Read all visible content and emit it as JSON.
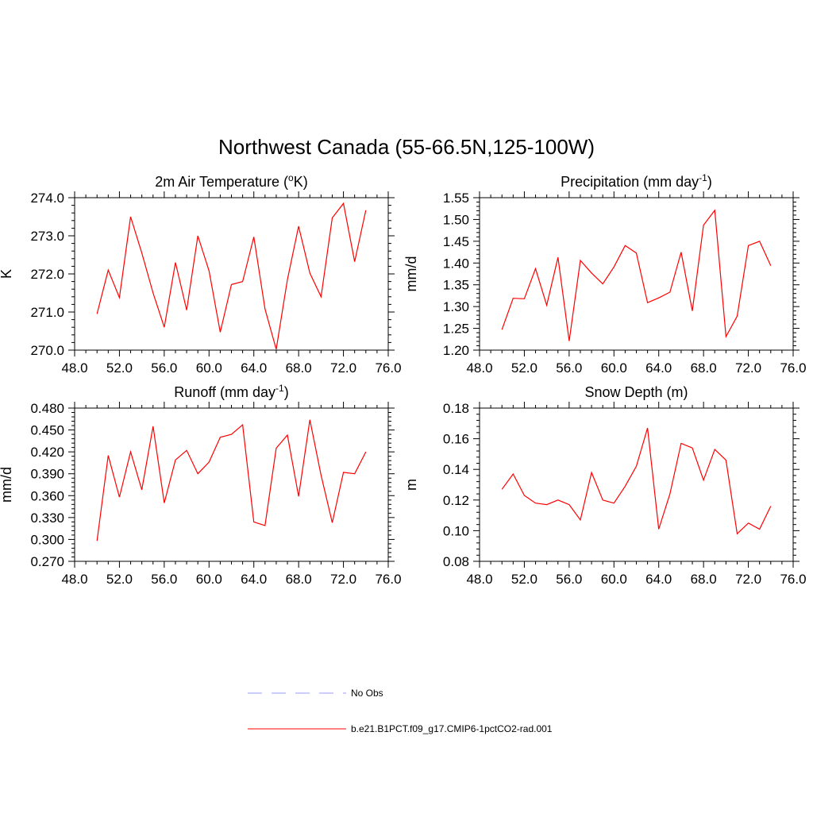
{
  "title": "Northwest Canada (55-66.5N,125-100W)",
  "colors": {
    "model": "#ff0000",
    "obs": "#9999ff",
    "axis": "#000000"
  },
  "legend": {
    "placement": "bottom-center",
    "entries": [
      {
        "label": "No Obs",
        "style": "dashed",
        "color": "#9999ff"
      },
      {
        "label": "b.e21.B1PCT.f09_g17.CMIP6-1pctCO2-rad.001",
        "style": "solid",
        "color": "#ff0000"
      }
    ]
  },
  "chart_data": [
    {
      "type": "line",
      "title_main": "2m Air Temperature (",
      "title_sup": "o",
      "title_tail": "K)",
      "xlabel": "",
      "ylabel": "K",
      "xlim": [
        48,
        76
      ],
      "ylim": [
        270,
        274
      ],
      "xticks": [
        "48.0",
        "52.0",
        "56.0",
        "60.0",
        "64.0",
        "68.0",
        "72.0",
        "76.0"
      ],
      "yticks": [
        "270.0",
        "271.0",
        "272.0",
        "273.0",
        "274.0"
      ],
      "grid": false,
      "series": [
        {
          "x": [
            50,
            51,
            52,
            53,
            54,
            55,
            56,
            57,
            58,
            59,
            60,
            61,
            62,
            63,
            64,
            65,
            66,
            67,
            68,
            69,
            70,
            71,
            72,
            73,
            74
          ],
          "values": [
            270.95,
            272.1,
            271.38,
            273.5,
            272.55,
            271.5,
            270.6,
            272.3,
            271.05,
            273.0,
            272.08,
            270.47,
            271.72,
            271.8,
            272.97,
            271.08,
            270.02,
            271.85,
            273.25,
            272.02,
            271.4,
            273.47,
            273.85,
            272.32,
            273.67
          ]
        }
      ]
    },
    {
      "type": "line",
      "title_main": "Precipitation (mm day",
      "title_sup": "-1",
      "title_tail": ")",
      "xlabel": "",
      "ylabel": "mm/d",
      "xlim": [
        48,
        76
      ],
      "ylim": [
        1.2,
        1.55
      ],
      "xticks": [
        "48.0",
        "52.0",
        "56.0",
        "60.0",
        "64.0",
        "68.0",
        "72.0",
        "76.0"
      ],
      "yticks": [
        "1.20",
        "1.25",
        "1.30",
        "1.35",
        "1.40",
        "1.45",
        "1.50",
        "1.55"
      ],
      "grid": false,
      "series": [
        {
          "x": [
            50,
            51,
            52,
            53,
            54,
            55,
            56,
            57,
            58,
            59,
            60,
            61,
            62,
            63,
            64,
            65,
            66,
            67,
            68,
            69,
            70,
            71,
            72,
            73,
            74
          ],
          "values": [
            1.247,
            1.319,
            1.318,
            1.387,
            1.303,
            1.413,
            1.221,
            1.406,
            1.377,
            1.352,
            1.391,
            1.44,
            1.423,
            1.309,
            1.32,
            1.333,
            1.425,
            1.29,
            1.487,
            1.521,
            1.231,
            1.278,
            1.44,
            1.45,
            1.394
          ]
        }
      ]
    },
    {
      "type": "line",
      "title_main": "Runoff (mm day",
      "title_sup": "-1",
      "title_tail": ")",
      "xlabel": "",
      "ylabel": "mm/d",
      "xlim": [
        48,
        76
      ],
      "ylim": [
        0.27,
        0.48
      ],
      "xticks": [
        "48.0",
        "52.0",
        "56.0",
        "60.0",
        "64.0",
        "68.0",
        "72.0",
        "76.0"
      ],
      "yticks": [
        "0.270",
        "0.300",
        "0.330",
        "0.360",
        "0.390",
        "0.420",
        "0.450",
        "0.480"
      ],
      "grid": false,
      "series": [
        {
          "x": [
            50,
            51,
            52,
            53,
            54,
            55,
            56,
            57,
            58,
            59,
            60,
            61,
            62,
            63,
            64,
            65,
            66,
            67,
            68,
            69,
            70,
            71,
            72,
            73,
            74
          ],
          "values": [
            0.298,
            0.415,
            0.358,
            0.42,
            0.368,
            0.455,
            0.35,
            0.409,
            0.422,
            0.39,
            0.406,
            0.44,
            0.444,
            0.457,
            0.324,
            0.319,
            0.425,
            0.443,
            0.359,
            0.464,
            0.388,
            0.323,
            0.392,
            0.39,
            0.42
          ]
        }
      ]
    },
    {
      "type": "line",
      "title_main": "Snow Depth (m)",
      "title_sup": "",
      "title_tail": "",
      "xlabel": "",
      "ylabel": "m",
      "xlim": [
        48,
        76
      ],
      "ylim": [
        0.08,
        0.18
      ],
      "xticks": [
        "48.0",
        "52.0",
        "56.0",
        "60.0",
        "64.0",
        "68.0",
        "72.0",
        "76.0"
      ],
      "yticks": [
        "0.08",
        "0.10",
        "0.12",
        "0.14",
        "0.16",
        "0.18"
      ],
      "grid": false,
      "series": [
        {
          "x": [
            50,
            51,
            52,
            53,
            54,
            55,
            56,
            57,
            58,
            59,
            60,
            61,
            62,
            63,
            64,
            65,
            66,
            67,
            68,
            69,
            70,
            71,
            72,
            73,
            74
          ],
          "values": [
            0.127,
            0.137,
            0.123,
            0.118,
            0.117,
            0.12,
            0.117,
            0.107,
            0.138,
            0.12,
            0.118,
            0.129,
            0.142,
            0.167,
            0.101,
            0.124,
            0.157,
            0.154,
            0.133,
            0.153,
            0.146,
            0.098,
            0.105,
            0.101,
            0.116
          ]
        }
      ]
    }
  ]
}
